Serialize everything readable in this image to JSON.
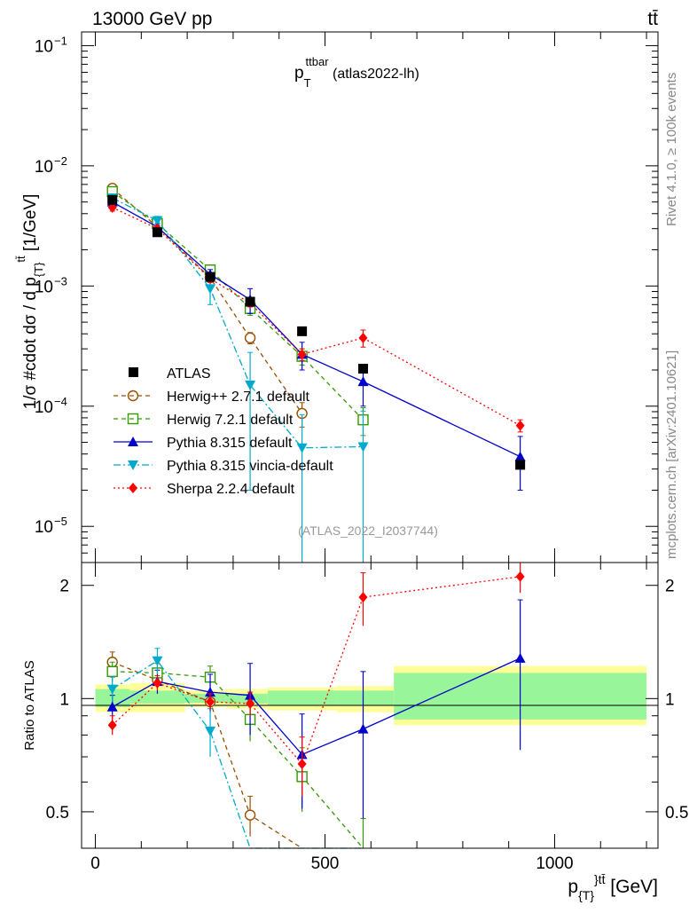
{
  "header": {
    "energy_label": "13000 GeV pp",
    "process_label": "tt̄",
    "side_top": "Rivet 4.1.0, ≥ 100k events",
    "side_bottom": "mcplots.cern.ch [arXiv:2401.10621]"
  },
  "chart_data": {
    "type": "line",
    "title_main": "p",
    "title_sub": "T",
    "title_sup": "ttbar",
    "title_suffix": " (atlas2022-lh)",
    "analysis_id": "(ATLAS_2022_I2037744)",
    "ylabel_top": "1/σ #cdot dσ / d p_{T}^{tt̄} [1/GeV]",
    "ylabel_top_main": "1/σ #cdot dσ / d p",
    "ylabel_top_sub": "{T}",
    "ylabel_top_sup": "tt̄",
    "ylabel_top_unit": " [1/GeV]",
    "ylabel_bottom": "Ratio to ATLAS",
    "xlabel_main": "p",
    "xlabel_sub": "{T}",
    "xlabel_sup": "}tt̄",
    "xlabel_unit": " [GeV]",
    "xlim": [
      -30,
      1225
    ],
    "ylim_top": [
      5e-06,
      0.13
    ],
    "ylim_bottom": [
      0.4,
      2.3
    ],
    "xticks_major": [
      0,
      500,
      1000
    ],
    "xtick_labels": [
      "0",
      "500",
      "1000"
    ],
    "yticks_top": [
      {
        "value": 0.1,
        "base": "10",
        "exp": "−1"
      },
      {
        "value": 0.01,
        "base": "10",
        "exp": "−2"
      },
      {
        "value": 0.001,
        "base": "10",
        "exp": "−3"
      },
      {
        "value": 0.0001,
        "base": "10",
        "exp": "−4"
      },
      {
        "value": 1e-05,
        "base": "10",
        "exp": "−5"
      }
    ],
    "yticks_bottom": [
      {
        "value": 0.5,
        "label": "0.5"
      },
      {
        "value": 1,
        "label": "1"
      },
      {
        "value": 2,
        "label": "2"
      }
    ],
    "bin_edges": [
      0,
      75,
      195,
      285,
      375,
      525,
      650,
      1200
    ],
    "band_inner": [
      [
        0.95,
        1.06
      ],
      [
        0.97,
        1.05
      ],
      [
        0.975,
        1.03
      ],
      [
        0.97,
        1.03
      ],
      [
        0.96,
        1.05
      ],
      [
        0.96,
        1.05
      ],
      [
        0.88,
        1.17
      ]
    ],
    "band_outer": [
      [
        0.92,
        1.09
      ],
      [
        0.92,
        1.1
      ],
      [
        0.95,
        1.05
      ],
      [
        0.94,
        1.06
      ],
      [
        0.93,
        1.07
      ],
      [
        0.92,
        1.08
      ],
      [
        0.85,
        1.22
      ]
    ],
    "data": {
      "name": "ATLAS",
      "x": [
        37,
        135,
        250,
        337,
        450,
        583,
        925
      ],
      "y": [
        0.0052,
        0.0028,
        0.00119,
        0.00074,
        0.00042,
        0.000205,
        3.25e-05
      ],
      "err": [
        0.0003,
        0.00014,
        5e-05,
        3e-05,
        2e-05,
        1e-05,
        3e-06
      ]
    },
    "series": [
      {
        "name": "Herwig++ 2.7.1 default",
        "color": "#994d00",
        "marker": "open-circle",
        "dash": "5,4",
        "x": [
          37,
          135,
          250,
          337,
          450
        ],
        "y": [
          0.0065,
          0.0031,
          0.00117,
          0.00037,
          8.7e-05
        ],
        "yerr": [
          0.0004,
          0.00015,
          7e-05,
          4e-05,
          2e-05
        ],
        "ratio": [
          1.25,
          1.12,
          0.98,
          0.49,
          0.2
        ],
        "ratio_err": [
          0.08,
          0.05,
          0.06,
          0.06,
          0.05
        ]
      },
      {
        "name": "Herwig 7.2.1 default",
        "color": "#339900",
        "marker": "open-square",
        "dash": "5,4",
        "x": [
          37,
          135,
          250,
          337,
          450,
          583
        ],
        "y": [
          0.0061,
          0.0033,
          0.00136,
          0.00065,
          0.00026,
          7.7e-05
        ],
        "yerr": [
          0.0004,
          0.0002,
          9e-05,
          8e-05,
          4e-05,
          2e-05
        ],
        "ratio": [
          1.18,
          1.17,
          1.14,
          0.88,
          0.62,
          0.38
        ],
        "ratio_err": [
          0.07,
          0.07,
          0.08,
          0.11,
          0.12,
          0.1
        ]
      },
      {
        "name": "Pythia 8.315 default",
        "color": "#0000cc",
        "marker": "filled-triangle-up",
        "dash": "",
        "x": [
          37,
          135,
          250,
          337,
          450,
          583,
          925
        ],
        "y": [
          0.005,
          0.0031,
          0.00125,
          0.00077,
          0.00027,
          0.00016,
          3.8e-05
        ],
        "yerr": [
          0.0003,
          0.0002,
          0.00012,
          0.00018,
          7e-05,
          6e-05,
          1.8e-05
        ],
        "ratio": [
          0.95,
          1.11,
          1.04,
          1.02,
          0.71,
          0.83,
          1.28
        ],
        "ratio_err": [
          0.07,
          0.08,
          0.12,
          0.22,
          0.2,
          0.35,
          0.55
        ]
      },
      {
        "name": "Pythia 8.315 vincia-default",
        "color": "#00aacc",
        "marker": "filled-triangle-down",
        "dash": "8,3,2,3",
        "x": [
          37,
          135,
          250,
          337,
          450,
          583
        ],
        "y": [
          0.0054,
          0.0035,
          0.00095,
          0.00015,
          4.5e-05,
          4.6e-05
        ],
        "yerr": [
          0.0004,
          0.0003,
          0.00025,
          0.00013,
          4e-05,
          4.5e-05
        ],
        "ratio": [
          1.06,
          1.26,
          0.82,
          0.2,
          0.2,
          0.2
        ],
        "ratio_err": [
          0.08,
          0.1,
          0.12,
          0.15,
          0.15,
          0.15
        ]
      },
      {
        "name": "Sherpa 2.2.4 default",
        "color": "#ff0000",
        "marker": "filled-diamond",
        "dash": "2,3",
        "x": [
          37,
          135,
          250,
          337,
          450,
          583,
          925
        ],
        "y": [
          0.0045,
          0.003,
          0.00115,
          0.00072,
          0.00027,
          0.00037,
          6.9e-05
        ],
        "yerr": [
          0.0003,
          0.00015,
          7e-05,
          5e-05,
          3e-05,
          6e-05,
          8e-06
        ],
        "ratio": [
          0.85,
          1.1,
          0.98,
          0.97,
          0.67,
          1.86,
          2.11
        ],
        "ratio_err": [
          0.05,
          0.05,
          0.05,
          0.07,
          0.12,
          0.3,
          0.2
        ]
      }
    ]
  }
}
